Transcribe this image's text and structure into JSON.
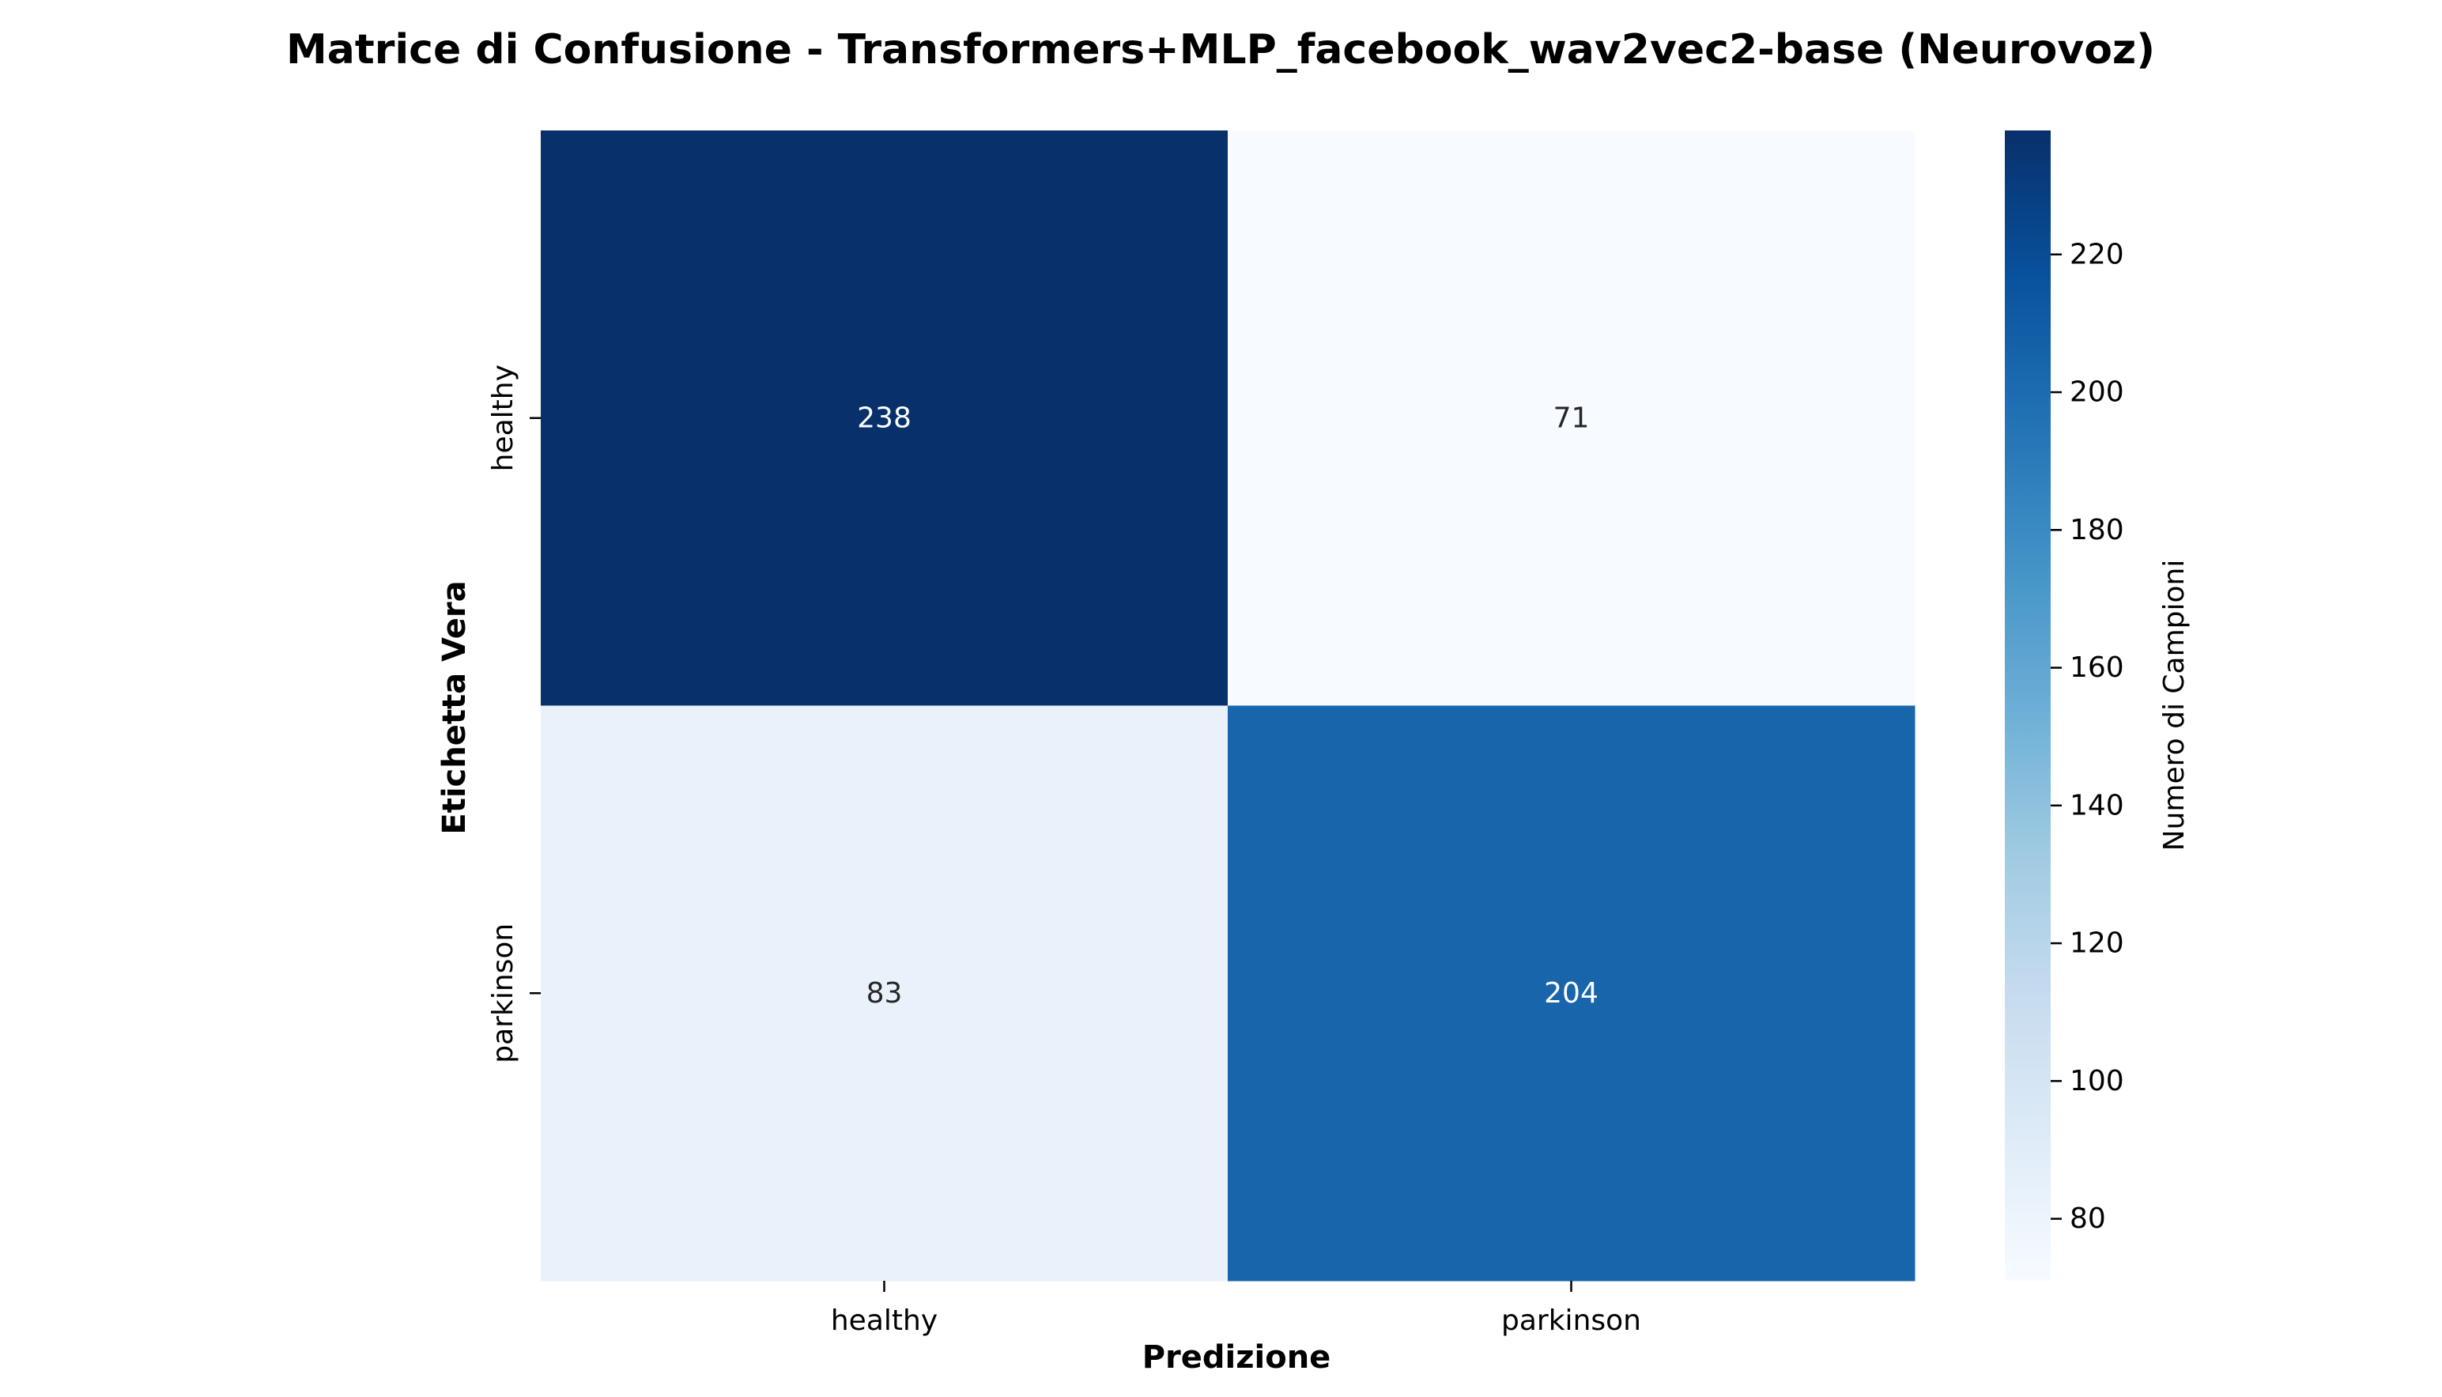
{
  "chart_data": {
    "type": "heatmap",
    "title": "Matrice di Confusione - Transformers+MLP_facebook_wav2vec2-base (Neurovoz)",
    "xlabel": "Predizione",
    "ylabel": "Etichetta Vera",
    "x_categories": [
      "healthy",
      "parkinson"
    ],
    "y_categories": [
      "healthy",
      "parkinson"
    ],
    "values": [
      [
        238,
        71
      ],
      [
        83,
        204
      ]
    ],
    "colormap": "Blues",
    "colorbar": {
      "label": "Numero di Campioni",
      "min": 71,
      "max": 238,
      "ticks": [
        80,
        100,
        120,
        140,
        160,
        180,
        200,
        220
      ]
    }
  }
}
